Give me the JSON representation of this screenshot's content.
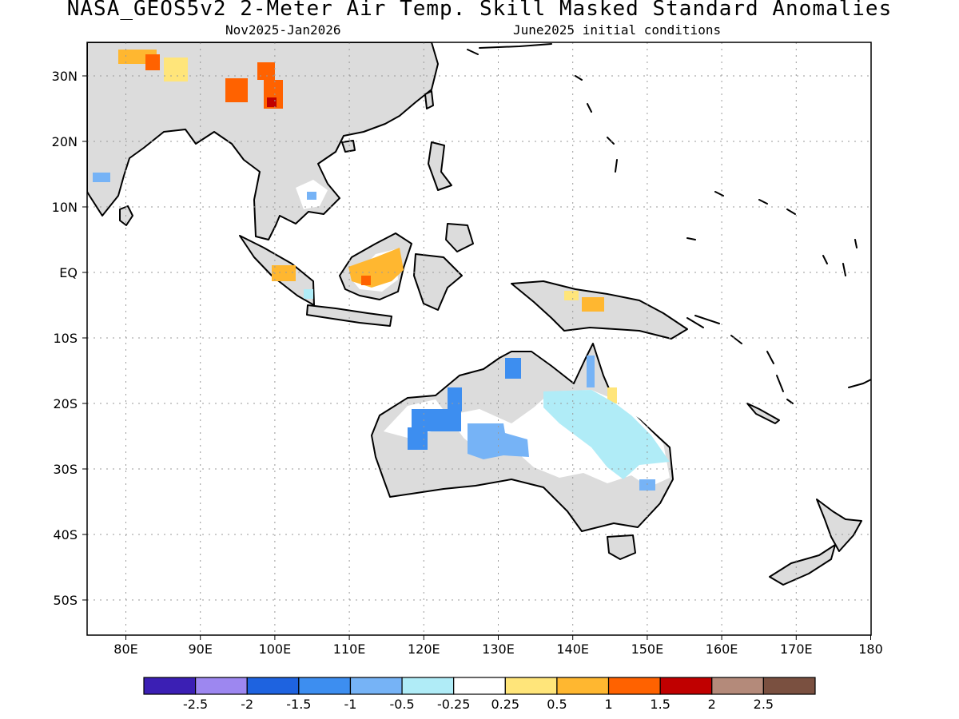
{
  "title": "NASA_GEOS5v2 2-Meter Air Temp. Skill Masked Standard Anomalies",
  "subtitle_left": "Nov2025-Jan2026",
  "subtitle_right": "June2025 initial conditions",
  "map": {
    "lon_labels": [
      "80E",
      "90E",
      "100E",
      "110E",
      "120E",
      "130E",
      "140E",
      "150E",
      "160E",
      "170E",
      "180"
    ],
    "lat_labels": [
      "30N",
      "20N",
      "10N",
      "EQ",
      "10S",
      "20S",
      "30S",
      "40S",
      "50S"
    ]
  },
  "colorbar": {
    "colors": [
      "#3b1fb4",
      "#9d87f0",
      "#1e63e0",
      "#3d8ef0",
      "#76b3f6",
      "#b0ecf7",
      "#ffffff",
      "#ffe57a",
      "#ffb730",
      "#ff6200",
      "#c00000",
      "#b48a7a",
      "#7a5040"
    ],
    "labels": [
      "-2.5",
      "-2",
      "-1.5",
      "-1",
      "-0.5",
      "-0.25",
      "0.25",
      "0.5",
      "1",
      "1.5",
      "2",
      "2.5"
    ]
  }
}
